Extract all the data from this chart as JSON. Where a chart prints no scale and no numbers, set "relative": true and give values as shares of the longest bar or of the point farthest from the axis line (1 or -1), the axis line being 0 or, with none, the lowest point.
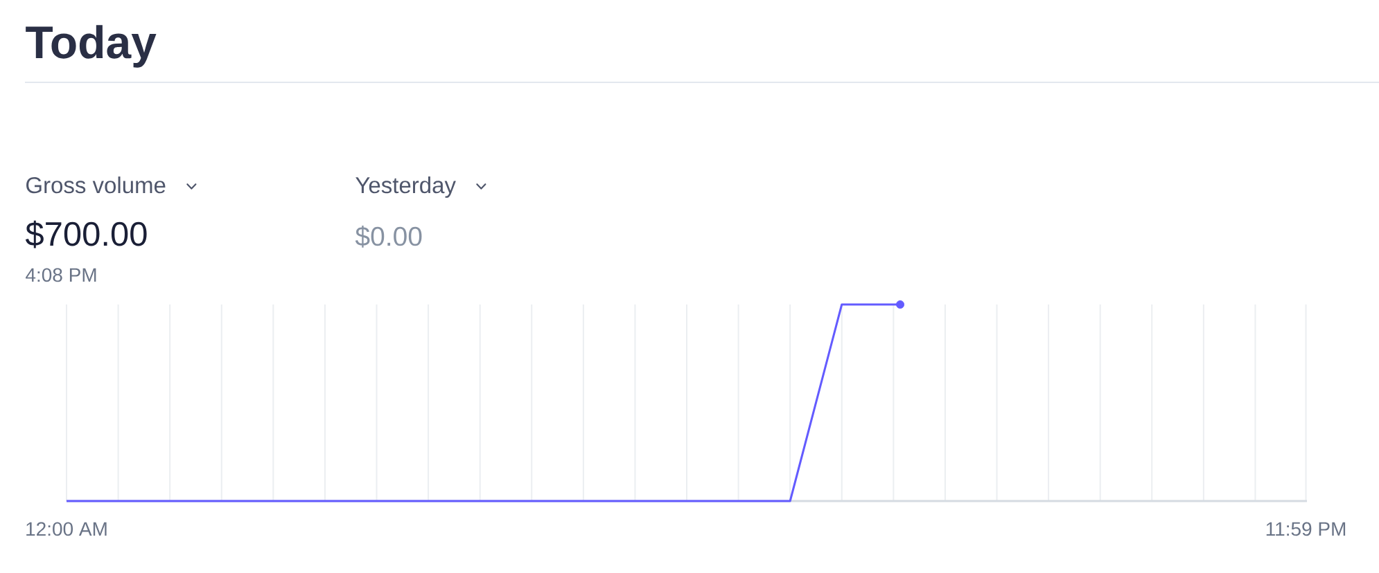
{
  "chart_data": {
    "type": "line",
    "title": "Today",
    "annotations": [
      "Gross volume",
      "$700.00",
      "4:08 PM",
      "Yesterday",
      "$0.00"
    ],
    "x": [
      0,
      1,
      2,
      3,
      4,
      5,
      6,
      7,
      8,
      9,
      10,
      11,
      12,
      13,
      14,
      15,
      16,
      16.13
    ],
    "xlim": [
      0,
      24
    ],
    "xticks": [
      {
        "value": 0,
        "label": "12:00 AM"
      },
      {
        "value": 1,
        "label": null
      },
      {
        "value": 2,
        "label": null
      },
      {
        "value": 3,
        "label": null
      },
      {
        "value": 4,
        "label": null
      },
      {
        "value": 5,
        "label": null
      },
      {
        "value": 6,
        "label": null
      },
      {
        "value": 7,
        "label": null
      },
      {
        "value": 8,
        "label": null
      },
      {
        "value": 9,
        "label": null
      },
      {
        "value": 10,
        "label": null
      },
      {
        "value": 11,
        "label": null
      },
      {
        "value": 12,
        "label": null
      },
      {
        "value": 13,
        "label": null
      },
      {
        "value": 14,
        "label": null
      },
      {
        "value": 15,
        "label": null
      },
      {
        "value": 16,
        "label": null
      },
      {
        "value": 17,
        "label": null
      },
      {
        "value": 18,
        "label": null
      },
      {
        "value": 19,
        "label": null
      },
      {
        "value": 20,
        "label": null
      },
      {
        "value": 21,
        "label": null
      },
      {
        "value": 22,
        "label": null
      },
      {
        "value": 23,
        "label": null
      },
      {
        "value": 23.98,
        "label": "11:59 PM"
      }
    ],
    "grid": "x",
    "relative": true,
    "series": [
      {
        "color": "#635bff",
        "values": [
          0,
          0,
          0,
          0,
          0,
          0,
          0,
          0,
          0,
          0,
          0,
          0,
          0,
          0,
          0,
          1,
          1,
          1
        ]
      },
      {
        "type": "scatter",
        "marker": "circle",
        "color": "#635bff",
        "x": [
          16.13
        ],
        "values": [
          1
        ]
      }
    ]
  }
}
